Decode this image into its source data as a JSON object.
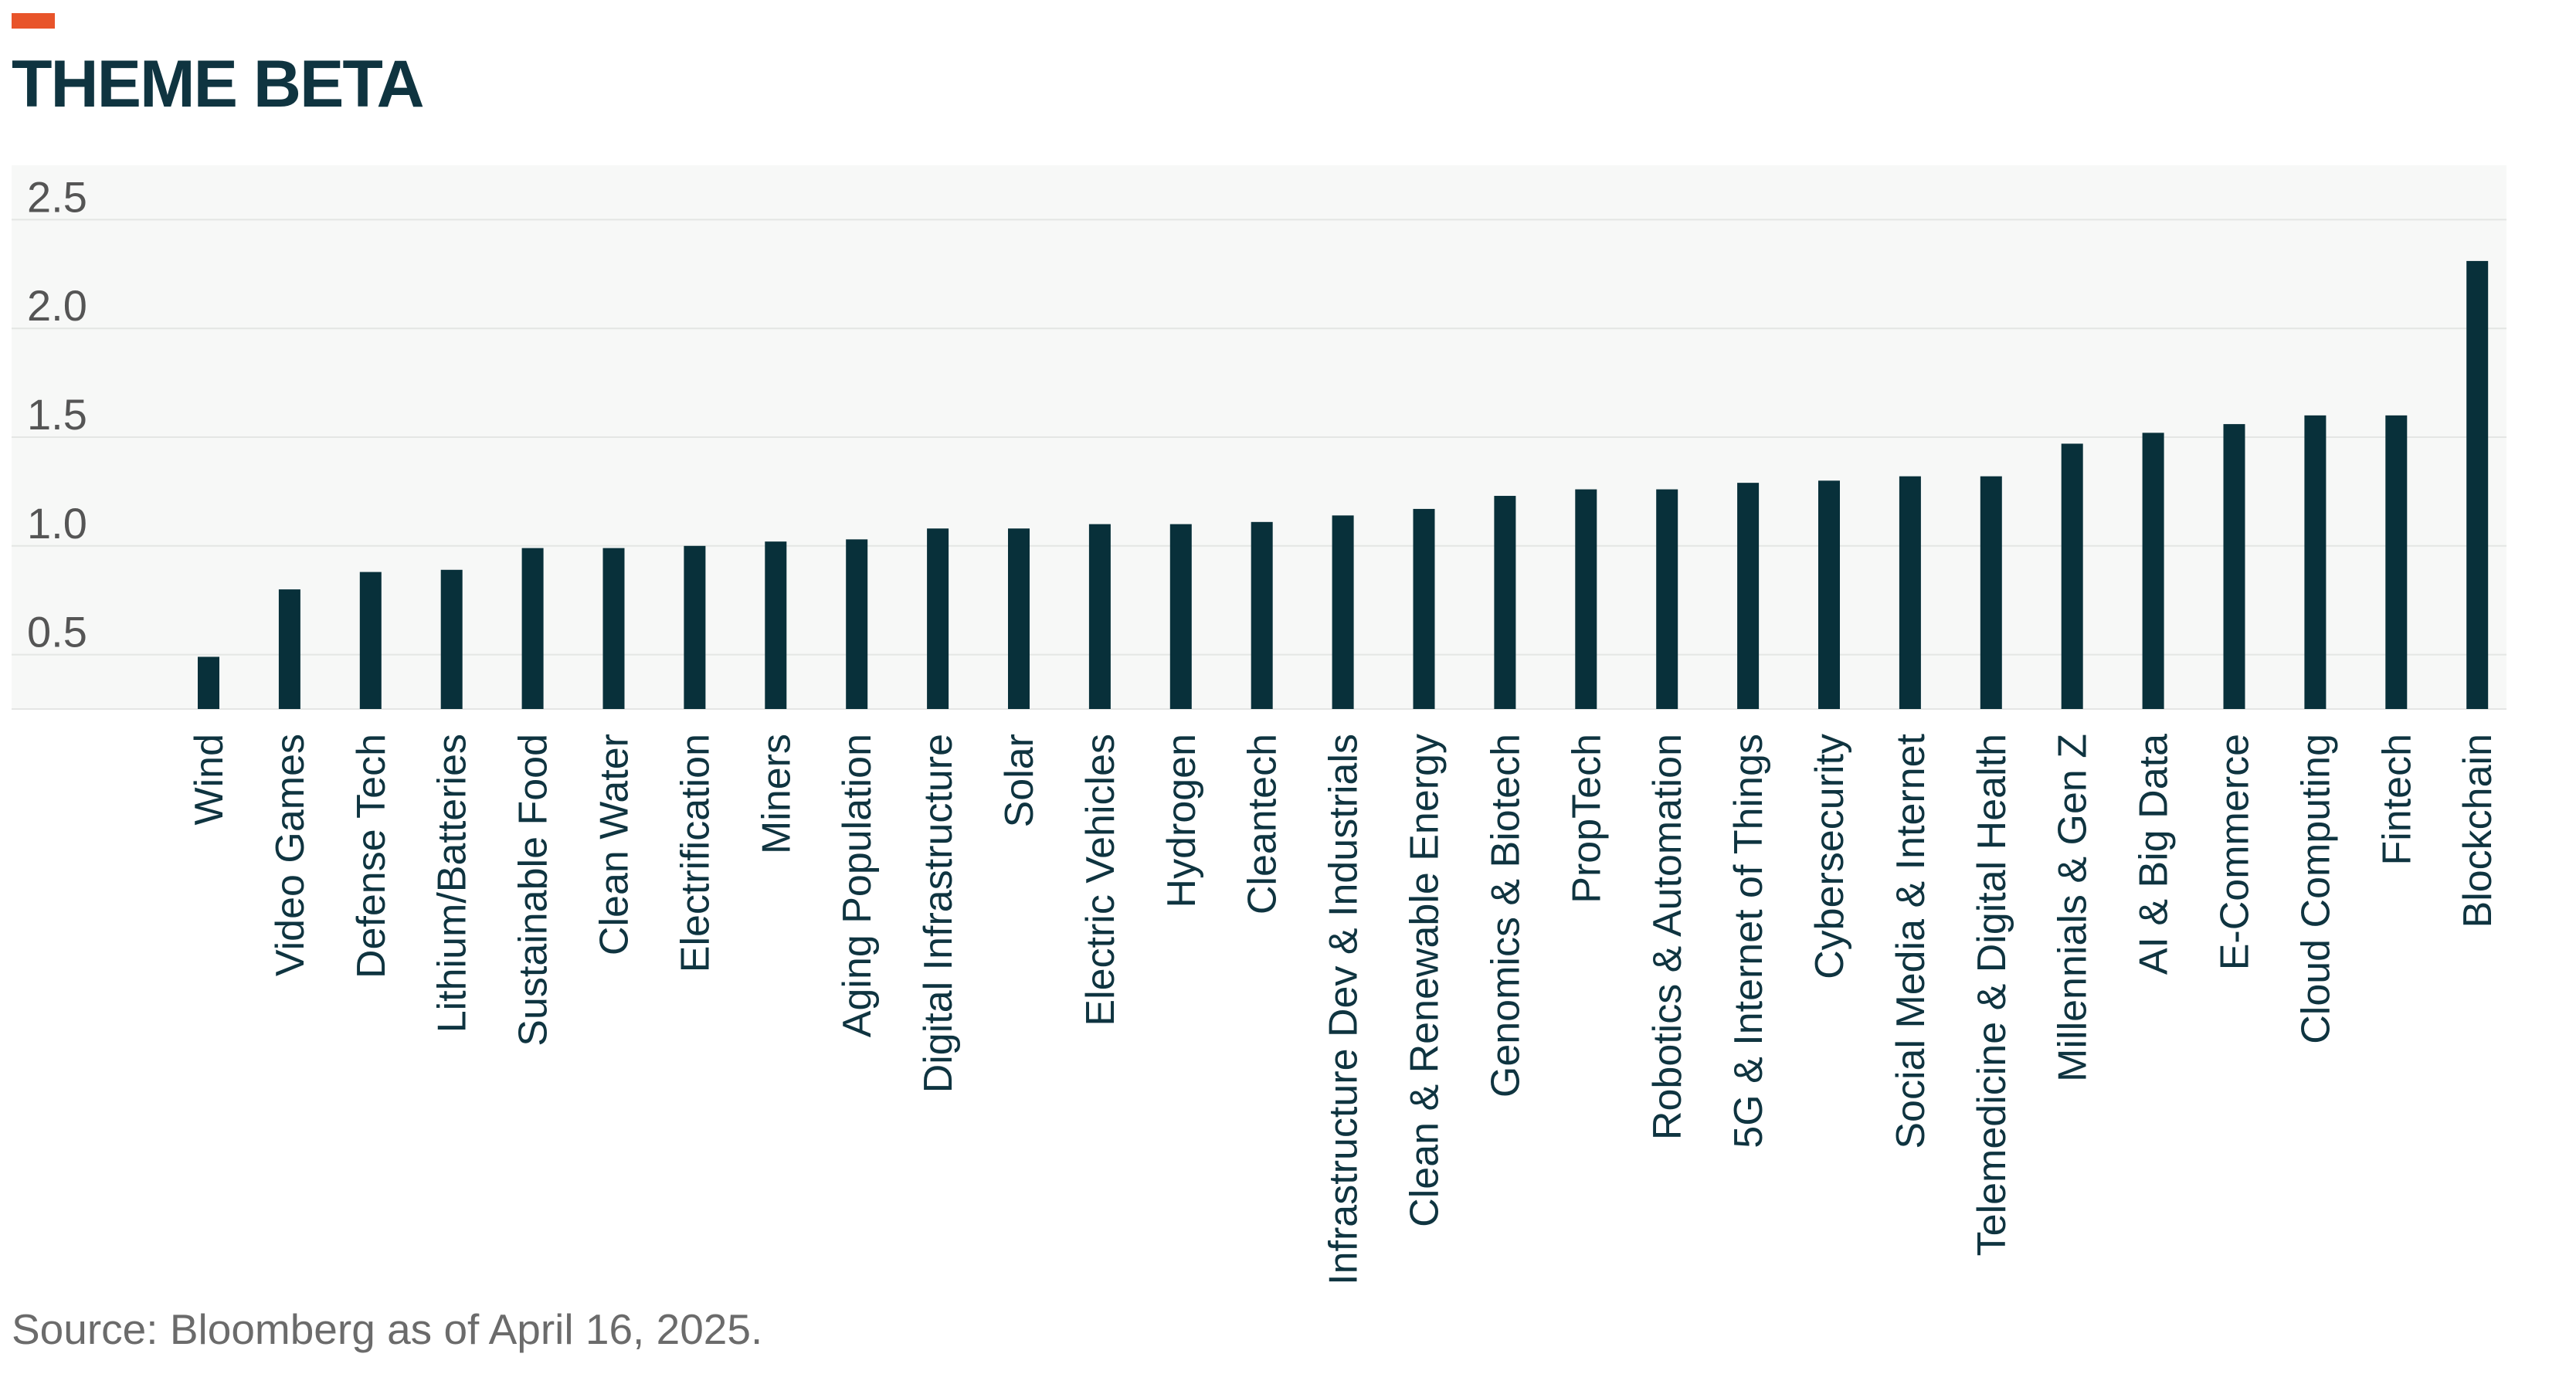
{
  "title": "THEME BETA",
  "source": "Source: Bloomberg as of April 16, 2025.",
  "colors": {
    "accent": "#e8542a",
    "title": "#0f3440",
    "bar": "#08303a",
    "plot_background": "#f7f8f7",
    "grid": "#e4e6e4",
    "tick_text": "#555555",
    "category_text": "#0f3440",
    "source_text": "#6b6b6b"
  },
  "chart_data": {
    "type": "bar",
    "title": "THEME BETA",
    "xlabel": "",
    "ylabel": "",
    "ylim": [
      0.25,
      2.75
    ],
    "yticks": [
      0.5,
      1.0,
      1.5,
      2.0,
      2.5
    ],
    "ytick_labels": [
      "0.5",
      "1.0",
      "1.5",
      "2.0",
      "2.5"
    ],
    "grid": true,
    "legend": "none",
    "categories": [
      "Wind",
      "Video Games",
      "Defense Tech",
      "Lithium/Batteries",
      "Sustainable Food",
      "Clean Water",
      "Electrification",
      "Miners",
      "Aging Population",
      "Digital Infrastructure",
      "Solar",
      "Electric Vehicles",
      "Hydrogen",
      "Cleantech",
      "Infrastructure Dev & Industrials",
      "Clean & Renewable Energy",
      "Genomics & Biotech",
      "PropTech",
      "Robotics & Automation",
      "5G & Internet of Things",
      "Cybersecurity",
      "Social Media & Internet",
      "Telemedicine & Digital Health",
      "Millennials & Gen Z",
      "AI & Big Data",
      "E-Commerce",
      "Cloud Computing",
      "Fintech",
      "Blockchain"
    ],
    "values": [
      0.49,
      0.8,
      0.88,
      0.89,
      0.99,
      0.99,
      1.0,
      1.02,
      1.03,
      1.08,
      1.08,
      1.1,
      1.1,
      1.11,
      1.14,
      1.17,
      1.23,
      1.26,
      1.26,
      1.29,
      1.3,
      1.32,
      1.32,
      1.47,
      1.52,
      1.56,
      1.6,
      1.6,
      2.31
    ]
  }
}
